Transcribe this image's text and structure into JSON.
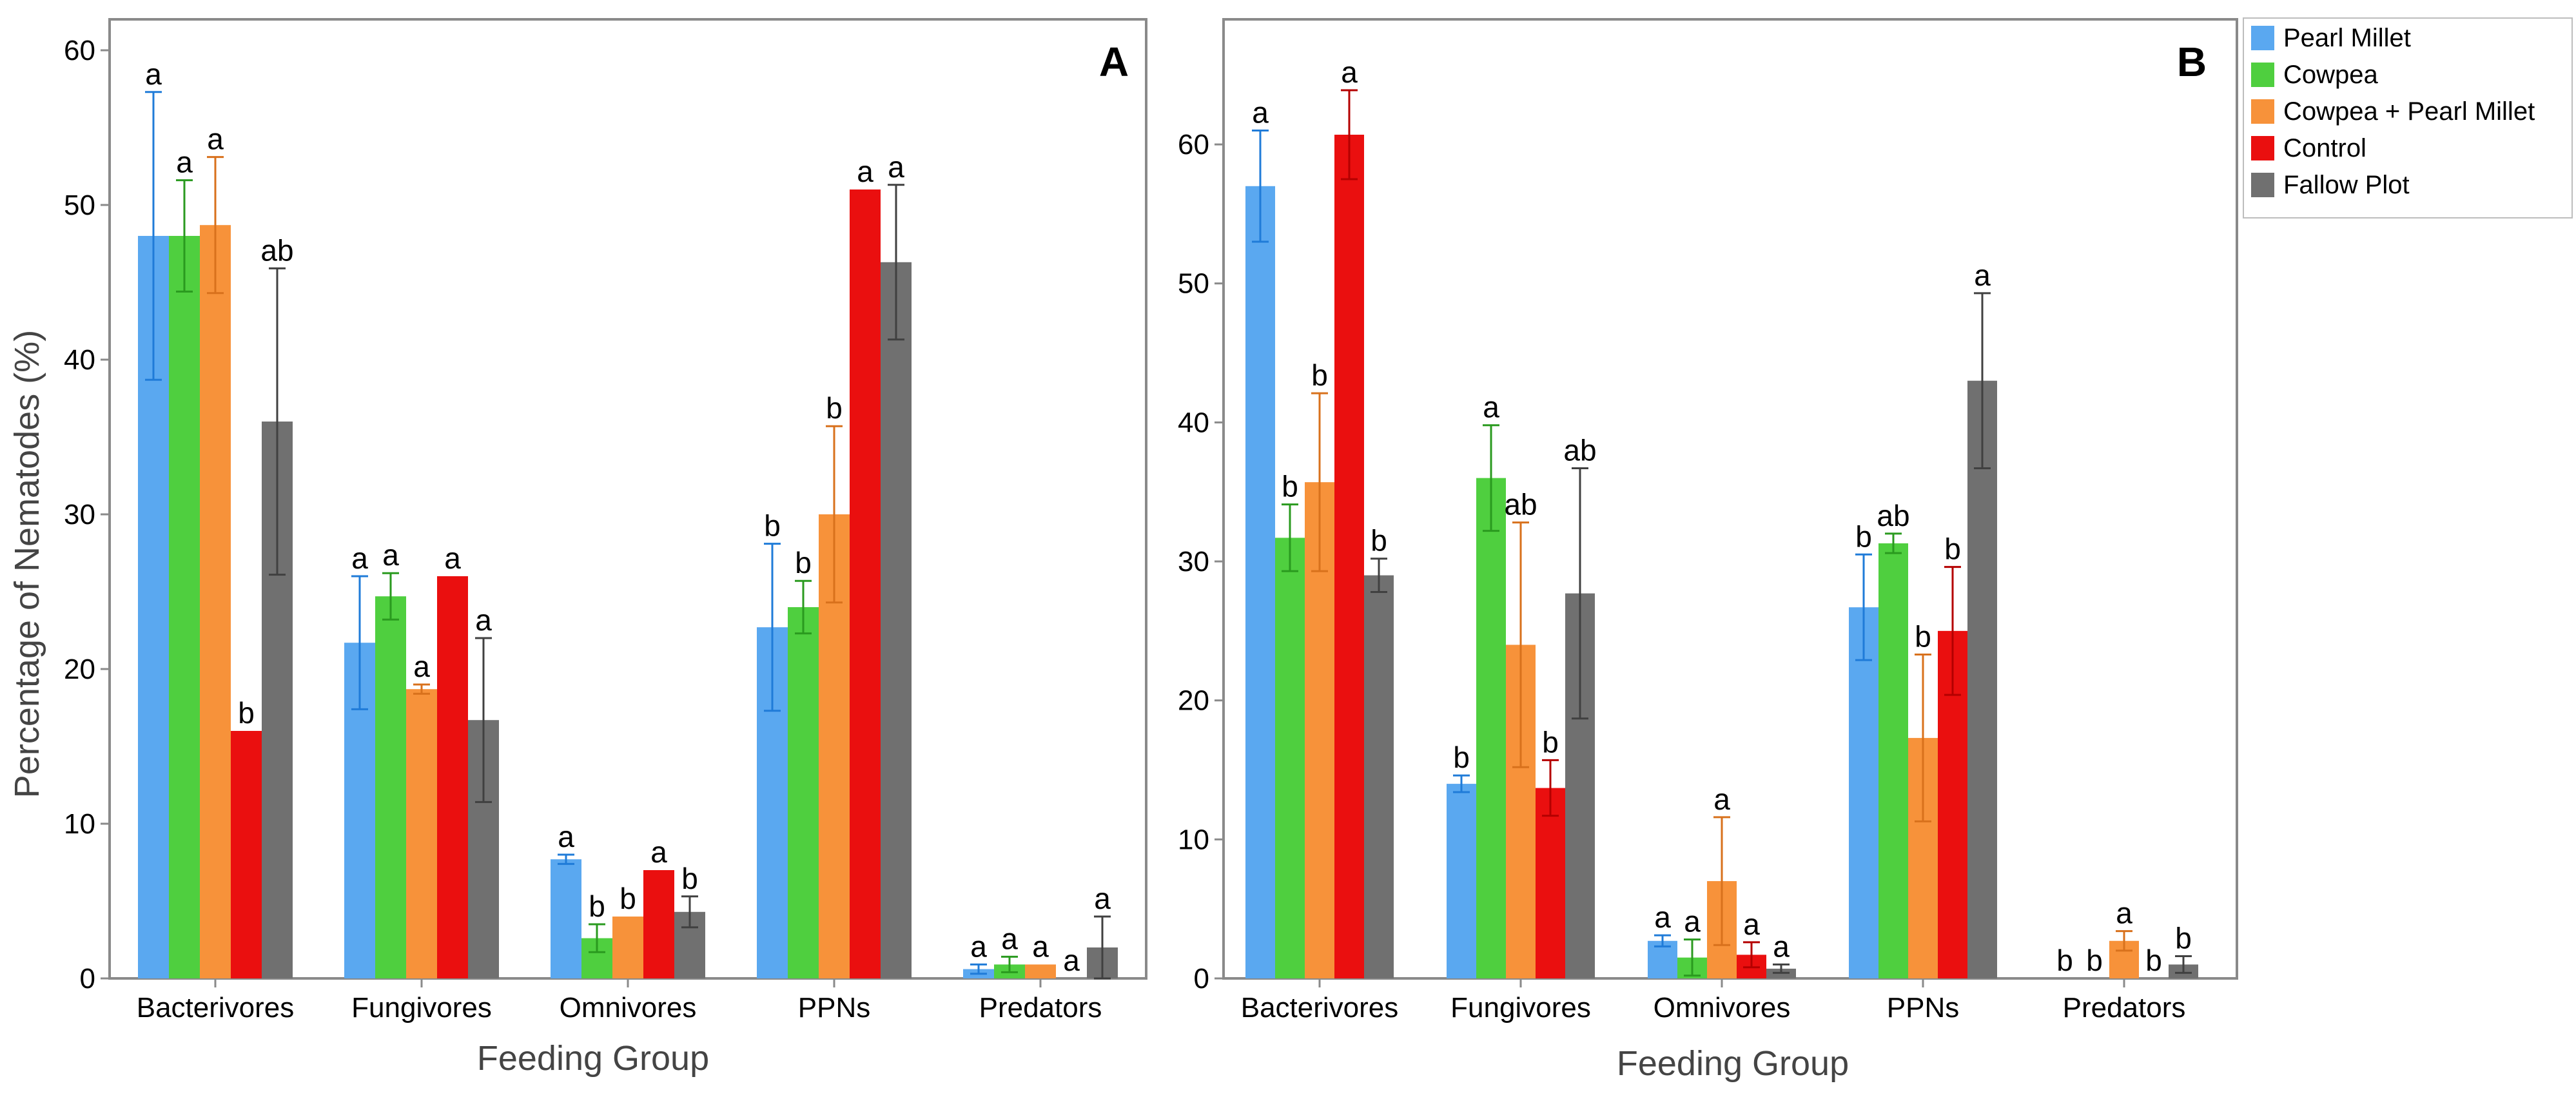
{
  "legend": [
    {
      "name": "Pearl Millet",
      "color": "#5aa8f0"
    },
    {
      "name": "Cowpea",
      "color": "#4fcf3f"
    },
    {
      "name": "Cowpea + Pearl Millet",
      "color": "#f7923a"
    },
    {
      "name": "Control",
      "color": "#ea0f0f"
    },
    {
      "name": "Fallow Plot",
      "color": "#707070"
    }
  ],
  "error_colors": [
    "#1f7bd8",
    "#2a9a1f",
    "#d8711c",
    "#b40000",
    "#404040"
  ],
  "chart_data": [
    {
      "type": "bar",
      "panel_label": "A",
      "title": "",
      "xlabel": "Feeding Group",
      "ylabel": "Percentage of Nematodes (%)",
      "categories": [
        "Bacterivores",
        "Fungivores",
        "Omnivores",
        "PPNs",
        "Predators"
      ],
      "ylim": [
        0,
        62
      ],
      "yticks": [
        0,
        10,
        20,
        30,
        40,
        50,
        60
      ],
      "grid": false,
      "series": [
        {
          "name": "Pearl Millet",
          "values": [
            48.0,
            21.7,
            7.7,
            22.7,
            0.6
          ],
          "errors": [
            9.3,
            4.3,
            0.3,
            5.4,
            0.3
          ],
          "labels": [
            "a",
            "a",
            "a",
            "b",
            "a"
          ]
        },
        {
          "name": "Cowpea",
          "values": [
            48.0,
            24.7,
            2.6,
            24.0,
            0.9
          ],
          "errors": [
            3.6,
            1.5,
            0.9,
            1.7,
            0.5
          ],
          "labels": [
            "a",
            "a",
            "b",
            "b",
            "a"
          ]
        },
        {
          "name": "Cowpea + Pearl Millet",
          "values": [
            48.7,
            18.7,
            4.0,
            30.0,
            0.9
          ],
          "errors": [
            4.4,
            0.3,
            0.0,
            5.7,
            0.0
          ],
          "labels": [
            "a",
            "a",
            "b",
            "b",
            "a"
          ]
        },
        {
          "name": "Control",
          "values": [
            16.0,
            26.0,
            7.0,
            51.0,
            0.0
          ],
          "errors": [
            0.0,
            0.0,
            0.0,
            0.0,
            0.0
          ],
          "labels": [
            "b",
            "a",
            "a",
            "a",
            "a"
          ]
        },
        {
          "name": "Fallow Plot",
          "values": [
            36.0,
            16.7,
            4.3,
            46.3,
            2.0
          ],
          "errors": [
            9.9,
            5.3,
            1.0,
            5.0,
            2.0
          ],
          "labels": [
            "ab",
            "a",
            "b",
            "a",
            "a"
          ]
        }
      ]
    },
    {
      "type": "bar",
      "panel_label": "B",
      "title": "",
      "xlabel": "Feeding Group",
      "ylabel": "",
      "categories": [
        "Bacterivores",
        "Fungivores",
        "Omnivores",
        "PPNs",
        "Predators"
      ],
      "ylim": [
        0,
        69
      ],
      "yticks": [
        0,
        10,
        20,
        30,
        40,
        50,
        60
      ],
      "grid": false,
      "series": [
        {
          "name": "Pearl Millet",
          "values": [
            57.0,
            14.0,
            2.7,
            26.7,
            0.0
          ],
          "errors": [
            4.0,
            0.6,
            0.4,
            3.8,
            0.0
          ],
          "labels": [
            "a",
            "b",
            "a",
            "b",
            "b"
          ]
        },
        {
          "name": "Cowpea",
          "values": [
            31.7,
            36.0,
            1.5,
            31.3,
            0.0
          ],
          "errors": [
            2.4,
            3.8,
            1.3,
            0.7,
            0.0
          ],
          "labels": [
            "b",
            "a",
            "a",
            "ab",
            "b"
          ]
        },
        {
          "name": "Cowpea + Pearl Millet",
          "values": [
            35.7,
            24.0,
            7.0,
            17.3,
            2.7
          ],
          "errors": [
            6.4,
            8.8,
            4.6,
            6.0,
            0.7
          ],
          "labels": [
            "b",
            "ab",
            "a",
            "b",
            "a"
          ]
        },
        {
          "name": "Control",
          "values": [
            60.7,
            13.7,
            1.7,
            25.0,
            0.0
          ],
          "errors": [
            3.2,
            2.0,
            0.9,
            4.6,
            0.0
          ],
          "labels": [
            "a",
            "b",
            "a",
            "b",
            "b"
          ]
        },
        {
          "name": "Fallow Plot",
          "values": [
            29.0,
            27.7,
            0.7,
            43.0,
            1.0
          ],
          "errors": [
            1.2,
            9.0,
            0.3,
            6.3,
            0.6
          ],
          "labels": [
            "b",
            "ab",
            "a",
            "a",
            "b"
          ]
        }
      ]
    }
  ]
}
